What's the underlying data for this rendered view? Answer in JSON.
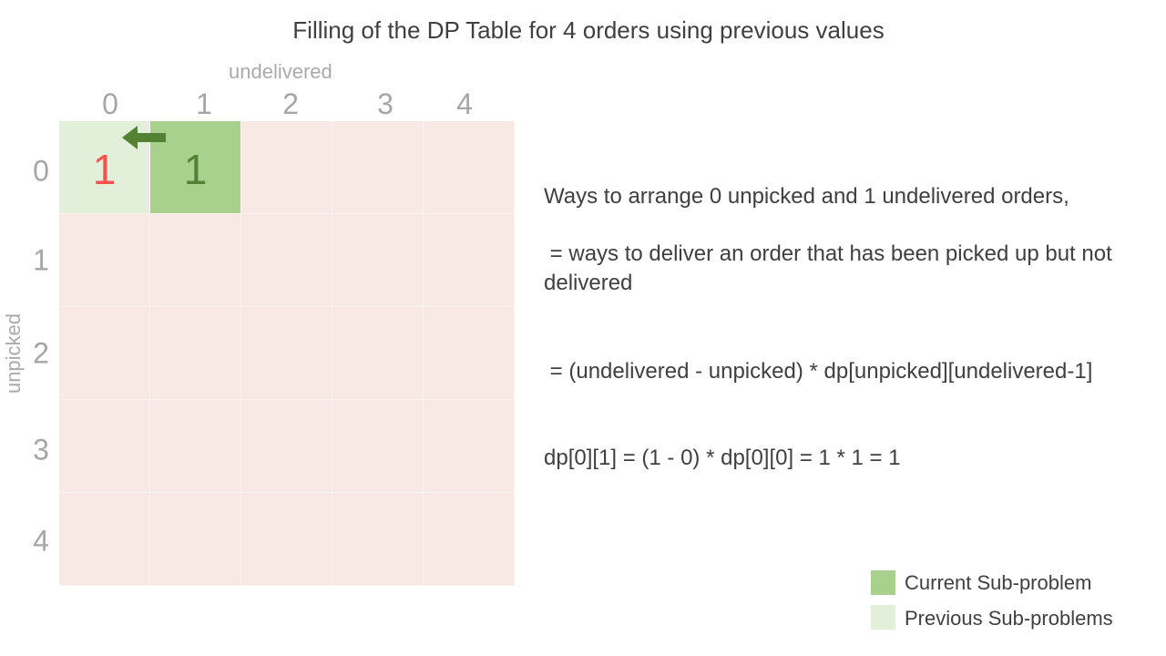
{
  "title": "Filling of the DP Table for 4 orders using previous values",
  "axis": {
    "x_title": "undelivered",
    "y_title": "unpicked",
    "col_labels": [
      "0",
      "1",
      "2",
      "3",
      "4"
    ],
    "row_labels": [
      "0",
      "1",
      "2",
      "3",
      "4"
    ]
  },
  "cells": {
    "r0c0": "1",
    "r0c1": "1"
  },
  "explanation": {
    "line1": "Ways to arrange 0 unpicked and 1 undelivered orders,",
    "line2": " = ways to deliver an order that has been picked up but not delivered",
    "line3": " = (undelivered - unpicked) * dp[unpicked][undelivered-1]",
    "line4": "dp[0][1] = (1 - 0) * dp[0][0] = 1 * 1 = 1"
  },
  "legend": {
    "current": "Current Sub-problem",
    "previous": "Previous Sub-problems"
  },
  "colors": {
    "grid_bg": "#f9e9e5",
    "current": "#a9d18e",
    "previous": "#e2efd9",
    "arrow": "#548235",
    "prev_value": "#ff5050",
    "current_value": "#548235"
  }
}
